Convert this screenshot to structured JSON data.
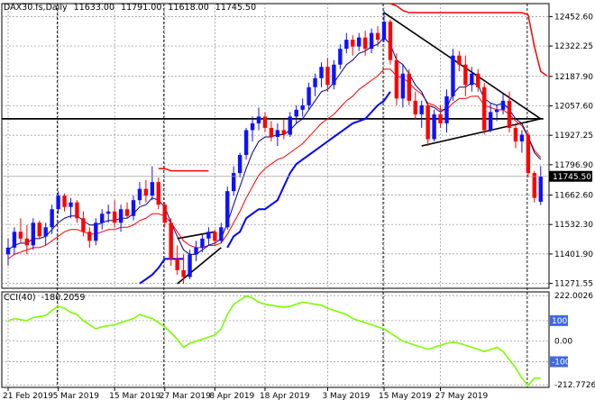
{
  "header": {
    "symbol": "DAX30.fs,Daily",
    "open": "11633.00",
    "high": "11791.00",
    "low": "11618.00",
    "close": "11745.50"
  },
  "cci_header": {
    "name": "CCI(40)",
    "value": "-180.2059"
  },
  "colors": {
    "bull": "#1010ff",
    "bear": "#ff0000",
    "ema_fast": "#000080",
    "ema_slow": "#ff0000",
    "support_line": "#0000ff",
    "cci_line": "#7cfc00",
    "grid": "#8c8c8c",
    "trend": "#000000",
    "price_tag_bg": "#000000"
  },
  "chart_data": [
    {
      "type": "candlestick",
      "title": "",
      "x_tick_labels": [
        "21 Feb 2019",
        "5 Mar 2019",
        "15 Mar 2019",
        "27 Mar 2019",
        "8 Apr 2019",
        "18 Apr 2019",
        "3 May 2019",
        "15 May 2019",
        "27 May 2019"
      ],
      "y_tick_labels": [
        "12452.60",
        "12322.25",
        "12187.90",
        "12057.60",
        "11927.25",
        "11796.90",
        "11662.60",
        "11532.30",
        "11401.90",
        "11271.55"
      ],
      "y_ticks": [
        12452.6,
        12322.25,
        12187.9,
        12057.6,
        11927.25,
        11796.9,
        11662.6,
        11532.3,
        11401.9,
        11271.55
      ],
      "ylim": [
        11250,
        12510
      ],
      "last_price_label": "11745.50",
      "last_price": 11745.5,
      "candles": [
        {
          "o": 11400,
          "h": 11470,
          "l": 11350,
          "c": 11430
        },
        {
          "o": 11430,
          "h": 11520,
          "l": 11400,
          "c": 11500
        },
        {
          "o": 11500,
          "h": 11560,
          "l": 11450,
          "c": 11470
        },
        {
          "o": 11470,
          "h": 11530,
          "l": 11400,
          "c": 11440
        },
        {
          "o": 11440,
          "h": 11560,
          "l": 11420,
          "c": 11540
        },
        {
          "o": 11540,
          "h": 11550,
          "l": 11470,
          "c": 11480
        },
        {
          "o": 11480,
          "h": 11540,
          "l": 11440,
          "c": 11520
        },
        {
          "o": 11520,
          "h": 11620,
          "l": 11490,
          "c": 11600
        },
        {
          "o": 11600,
          "h": 11680,
          "l": 11580,
          "c": 11660
        },
        {
          "o": 11660,
          "h": 11670,
          "l": 11590,
          "c": 11610
        },
        {
          "o": 11610,
          "h": 11650,
          "l": 11560,
          "c": 11630
        },
        {
          "o": 11630,
          "h": 11640,
          "l": 11540,
          "c": 11560
        },
        {
          "o": 11560,
          "h": 11590,
          "l": 11480,
          "c": 11500
        },
        {
          "o": 11500,
          "h": 11520,
          "l": 11430,
          "c": 11460
        },
        {
          "o": 11460,
          "h": 11560,
          "l": 11440,
          "c": 11540
        },
        {
          "o": 11540,
          "h": 11600,
          "l": 11510,
          "c": 11580
        },
        {
          "o": 11580,
          "h": 11620,
          "l": 11540,
          "c": 11590
        },
        {
          "o": 11590,
          "h": 11640,
          "l": 11520,
          "c": 11540
        },
        {
          "o": 11540,
          "h": 11620,
          "l": 11500,
          "c": 11600
        },
        {
          "o": 11600,
          "h": 11630,
          "l": 11560,
          "c": 11570
        },
        {
          "o": 11570,
          "h": 11660,
          "l": 11550,
          "c": 11640
        },
        {
          "o": 11640,
          "h": 11720,
          "l": 11620,
          "c": 11690
        },
        {
          "o": 11690,
          "h": 11730,
          "l": 11630,
          "c": 11660
        },
        {
          "o": 11660,
          "h": 11790,
          "l": 11640,
          "c": 11720
        },
        {
          "o": 11720,
          "h": 11740,
          "l": 11600,
          "c": 11620
        },
        {
          "o": 11620,
          "h": 11630,
          "l": 11520,
          "c": 11540
        },
        {
          "o": 11540,
          "h": 11560,
          "l": 11350,
          "c": 11380
        },
        {
          "o": 11380,
          "h": 11440,
          "l": 11310,
          "c": 11330
        },
        {
          "o": 11330,
          "h": 11400,
          "l": 11270,
          "c": 11300
        },
        {
          "o": 11300,
          "h": 11420,
          "l": 11290,
          "c": 11400
        },
        {
          "o": 11400,
          "h": 11460,
          "l": 11370,
          "c": 11430
        },
        {
          "o": 11430,
          "h": 11490,
          "l": 11410,
          "c": 11470
        },
        {
          "o": 11470,
          "h": 11520,
          "l": 11440,
          "c": 11500
        },
        {
          "o": 11500,
          "h": 11510,
          "l": 11440,
          "c": 11460
        },
        {
          "o": 11460,
          "h": 11540,
          "l": 11450,
          "c": 11520
        },
        {
          "o": 11520,
          "h": 11700,
          "l": 11510,
          "c": 11680
        },
        {
          "o": 11680,
          "h": 11790,
          "l": 11660,
          "c": 11760
        },
        {
          "o": 11760,
          "h": 11850,
          "l": 11740,
          "c": 11840
        },
        {
          "o": 11840,
          "h": 11960,
          "l": 11820,
          "c": 11950
        },
        {
          "o": 11950,
          "h": 12010,
          "l": 11900,
          "c": 11980
        },
        {
          "o": 11980,
          "h": 12050,
          "l": 11950,
          "c": 12010
        },
        {
          "o": 12010,
          "h": 12030,
          "l": 11940,
          "c": 11960
        },
        {
          "o": 11960,
          "h": 11990,
          "l": 11900,
          "c": 11920
        },
        {
          "o": 11920,
          "h": 11980,
          "l": 11880,
          "c": 11950
        },
        {
          "o": 11950,
          "h": 12000,
          "l": 11910,
          "c": 11930
        },
        {
          "o": 11930,
          "h": 12030,
          "l": 11920,
          "c": 12010
        },
        {
          "o": 12010,
          "h": 12060,
          "l": 11980,
          "c": 12040
        },
        {
          "o": 12040,
          "h": 12090,
          "l": 12010,
          "c": 12060
        },
        {
          "o": 12060,
          "h": 12160,
          "l": 12040,
          "c": 12140
        },
        {
          "o": 12140,
          "h": 12200,
          "l": 12100,
          "c": 12180
        },
        {
          "o": 12180,
          "h": 12250,
          "l": 12140,
          "c": 12230
        },
        {
          "o": 12230,
          "h": 12270,
          "l": 12120,
          "c": 12150
        },
        {
          "o": 12150,
          "h": 12260,
          "l": 12130,
          "c": 12240
        },
        {
          "o": 12240,
          "h": 12330,
          "l": 12220,
          "c": 12310
        },
        {
          "o": 12310,
          "h": 12380,
          "l": 12290,
          "c": 12350
        },
        {
          "o": 12350,
          "h": 12370,
          "l": 12280,
          "c": 12320
        },
        {
          "o": 12320,
          "h": 12380,
          "l": 12300,
          "c": 12360
        },
        {
          "o": 12360,
          "h": 12390,
          "l": 12280,
          "c": 12310
        },
        {
          "o": 12310,
          "h": 12400,
          "l": 12290,
          "c": 12380
        },
        {
          "o": 12380,
          "h": 12410,
          "l": 12320,
          "c": 12350
        },
        {
          "o": 12350,
          "h": 12480,
          "l": 12340,
          "c": 12430
        },
        {
          "o": 12430,
          "h": 12440,
          "l": 12240,
          "c": 12260
        },
        {
          "o": 12260,
          "h": 12290,
          "l": 12060,
          "c": 12090
        },
        {
          "o": 12090,
          "h": 12240,
          "l": 12050,
          "c": 12200
        },
        {
          "o": 12200,
          "h": 12220,
          "l": 12060,
          "c": 12080
        },
        {
          "o": 12080,
          "h": 12120,
          "l": 12000,
          "c": 12020
        },
        {
          "o": 12020,
          "h": 12080,
          "l": 11960,
          "c": 12060
        },
        {
          "o": 12060,
          "h": 12070,
          "l": 11880,
          "c": 11910
        },
        {
          "o": 11910,
          "h": 12040,
          "l": 11900,
          "c": 12020
        },
        {
          "o": 12020,
          "h": 12060,
          "l": 11960,
          "c": 11980
        },
        {
          "o": 11980,
          "h": 12130,
          "l": 11940,
          "c": 12100
        },
        {
          "o": 12100,
          "h": 12310,
          "l": 12080,
          "c": 12280
        },
        {
          "o": 12280,
          "h": 12300,
          "l": 12210,
          "c": 12240
        },
        {
          "o": 12240,
          "h": 12280,
          "l": 12100,
          "c": 12150
        },
        {
          "o": 12150,
          "h": 12230,
          "l": 12120,
          "c": 12200
        },
        {
          "o": 12200,
          "h": 12220,
          "l": 12120,
          "c": 12140
        },
        {
          "o": 12140,
          "h": 12160,
          "l": 11930,
          "c": 11950
        },
        {
          "o": 11950,
          "h": 12070,
          "l": 11940,
          "c": 12030
        },
        {
          "o": 12030,
          "h": 12060,
          "l": 11990,
          "c": 12040
        },
        {
          "o": 12040,
          "h": 12110,
          "l": 12020,
          "c": 12080
        },
        {
          "o": 12080,
          "h": 12120,
          "l": 11940,
          "c": 11960
        },
        {
          "o": 11960,
          "h": 11980,
          "l": 11870,
          "c": 11900
        },
        {
          "o": 11900,
          "h": 11950,
          "l": 11850,
          "c": 11930
        },
        {
          "o": 11930,
          "h": 11940,
          "l": 11740,
          "c": 11760
        },
        {
          "o": 11760,
          "h": 11770,
          "l": 11630,
          "c": 11650
        },
        {
          "o": 11633,
          "h": 11791,
          "l": 11618,
          "c": 11745.5
        }
      ],
      "x_ticks_index": [
        0,
        8,
        17,
        25,
        33,
        41,
        51,
        60,
        69
      ],
      "ema_fast": [
        11420,
        11440,
        11450,
        11450,
        11470,
        11470,
        11480,
        11510,
        11540,
        11560,
        11570,
        11570,
        11550,
        11530,
        11530,
        11540,
        11550,
        11550,
        11560,
        11560,
        11580,
        11610,
        11620,
        11650,
        11640,
        11610,
        11540,
        11480,
        11420,
        11400,
        11400,
        11420,
        11440,
        11450,
        11470,
        11540,
        11620,
        11700,
        11780,
        11850,
        11900,
        11920,
        11920,
        11930,
        11930,
        11950,
        11980,
        12000,
        12040,
        12080,
        12120,
        12130,
        12160,
        12200,
        12240,
        12260,
        12290,
        12300,
        12320,
        12330,
        12360,
        12330,
        12260,
        12240,
        12200,
        12150,
        12120,
        12060,
        12050,
        12030,
        12050,
        12110,
        12140,
        12140,
        12160,
        12150,
        12090,
        12070,
        12060,
        12070,
        12040,
        12000,
        11980,
        11920,
        11850,
        11820
      ],
      "ema_slow": [
        11380,
        11400,
        11410,
        11420,
        11430,
        11430,
        11440,
        11460,
        11480,
        11500,
        11510,
        11510,
        11500,
        11490,
        11490,
        11500,
        11510,
        11510,
        11520,
        11520,
        11530,
        11550,
        11560,
        11580,
        11580,
        11570,
        11540,
        11500,
        11460,
        11440,
        11430,
        11430,
        11440,
        11440,
        11450,
        11490,
        11540,
        11590,
        11650,
        11700,
        11750,
        11780,
        11800,
        11820,
        11830,
        11850,
        11870,
        11890,
        11920,
        11950,
        11980,
        12000,
        12020,
        12050,
        12080,
        12100,
        12130,
        12150,
        12170,
        12190,
        12220,
        12220,
        12190,
        12180,
        12160,
        12130,
        12110,
        12070,
        12060,
        12040,
        12040,
        12070,
        12090,
        12090,
        12100,
        12100,
        12060,
        12050,
        12040,
        12040,
        12020,
        11990,
        11970,
        11920,
        11860,
        11830
      ],
      "lower_band": [
        null,
        null,
        null,
        null,
        null,
        null,
        null,
        null,
        null,
        null,
        null,
        null,
        null,
        null,
        null,
        null,
        null,
        null,
        null,
        null,
        null,
        11271,
        11290,
        11310,
        11340,
        11380,
        11380,
        11380,
        11380,
        null,
        null,
        null,
        null,
        null,
        null,
        11430,
        11480,
        11500,
        11560,
        11580,
        11600,
        11600,
        11620,
        11640,
        11700,
        11760,
        11800,
        11820,
        11840,
        11860,
        11880,
        11900,
        11920,
        11940,
        11960,
        11980,
        11990,
        12000,
        12030,
        12060,
        12080,
        12120,
        null,
        null,
        null,
        null,
        null,
        null,
        null,
        null,
        null,
        null,
        null,
        null,
        null,
        null,
        null,
        null,
        null,
        null,
        null,
        null,
        null,
        null,
        null,
        null
      ],
      "upper_band": [
        null,
        null,
        null,
        null,
        null,
        null,
        null,
        null,
        null,
        null,
        null,
        null,
        null,
        null,
        null,
        null,
        null,
        null,
        null,
        null,
        null,
        null,
        null,
        null,
        11780,
        11780,
        11770,
        11770,
        11770,
        11770,
        11770,
        11770,
        11770,
        null,
        null,
        null,
        null,
        null,
        null,
        null,
        null,
        null,
        null,
        null,
        null,
        null,
        null,
        null,
        null,
        null,
        null,
        null,
        null,
        null,
        null,
        null,
        null,
        null,
        null,
        null,
        null,
        12510,
        12500,
        12480,
        12470,
        12470,
        12470,
        12470,
        12470,
        12470,
        12470,
        12470,
        12470,
        12470,
        12470,
        12470,
        12470,
        12470,
        12470,
        12470,
        12470,
        12470,
        12470,
        12460,
        12320,
        12210,
        12190
      ],
      "resistance_level": 12000,
      "trendlines": [
        {
          "x1": 60,
          "y1": 12470,
          "x2": 85,
          "y2": 12000
        },
        {
          "x1": 66,
          "y1": 11880,
          "x2": 85,
          "y2": 12000
        },
        {
          "x1": 27,
          "y1": 11270,
          "x2": 34,
          "y2": 11430
        },
        {
          "x1": 27,
          "y1": 11470,
          "x2": 33,
          "y2": 11500
        }
      ],
      "vlines_index": [
        8,
        25,
        60,
        83
      ]
    },
    {
      "type": "line",
      "title": "",
      "name": "CCI(40)",
      "y_tick_labels": [
        "222.0026",
        "100",
        "0.00",
        "-100",
        "-212.7726"
      ],
      "y_ticks": [
        222.0026,
        100,
        0,
        -100,
        -212.7726
      ],
      "ylim": [
        -225,
        240
      ],
      "values": [
        100,
        110,
        105,
        100,
        115,
        120,
        125,
        150,
        170,
        160,
        140,
        130,
        100,
        80,
        60,
        70,
        75,
        80,
        90,
        100,
        110,
        130,
        120,
        110,
        90,
        70,
        40,
        10,
        -30,
        -10,
        0,
        10,
        20,
        30,
        60,
        130,
        180,
        200,
        220,
        210,
        190,
        180,
        175,
        170,
        165,
        170,
        180,
        190,
        185,
        180,
        175,
        160,
        150,
        140,
        130,
        110,
        100,
        90,
        80,
        70,
        60,
        40,
        20,
        0,
        -10,
        -20,
        -30,
        -40,
        -30,
        -20,
        -10,
        -5,
        -10,
        -20,
        -30,
        -40,
        -50,
        -40,
        -30,
        -50,
        -90,
        -130,
        -180,
        -215,
        -180,
        -180
      ]
    }
  ]
}
